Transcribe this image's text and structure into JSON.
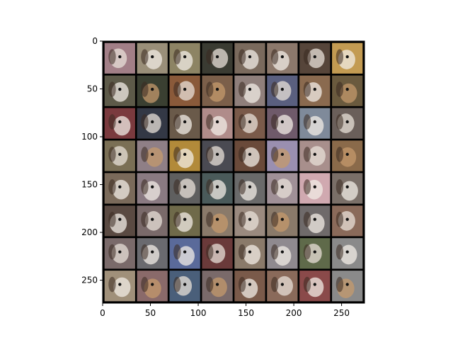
{
  "plot": {
    "x_axis": {
      "range": [
        0,
        274
      ],
      "ticks": [
        0,
        50,
        100,
        150,
        200,
        250
      ]
    },
    "y_axis": {
      "range": [
        0,
        274
      ],
      "ticks": [
        0,
        50,
        100,
        150,
        200,
        250
      ],
      "inverted": true
    }
  },
  "image_grid": {
    "rows": 8,
    "cols": 8,
    "tile_size": 32,
    "padding": 2,
    "pad_value_color": "#000000",
    "subject": "generated dog face samples",
    "tiles": [
      [
        "#a27f87",
        "#9a8f79",
        "#8d8464",
        "#3a3b32",
        "#7a6a5d",
        "#8c786b",
        "#56453a",
        "#c39b52"
      ],
      [
        "#5d5a49",
        "#3a3f31",
        "#8a5a3a",
        "#7b5f4a",
        "#8f7f7b",
        "#5a5f7f",
        "#8a6a4f",
        "#6a5a3e"
      ],
      [
        "#7a3a3e",
        "#333845",
        "#6a5a4a",
        "#b08c8a",
        "#7a5a4a",
        "#6f5a6a",
        "#7f8a9a",
        "#6a5f5a"
      ],
      [
        "#7a6f55",
        "#8f7f86",
        "#b28a3a",
        "#4a4a52",
        "#6a4a3a",
        "#9a8fb0",
        "#a88f8c",
        "#8a6a4a"
      ],
      [
        "#7a6a5a",
        "#8a7a82",
        "#5f5f5f",
        "#4a5a5a",
        "#6a6a6a",
        "#a09097",
        "#d0a9b0",
        "#7a6f68"
      ],
      [
        "#5a4a42",
        "#7a6a6a",
        "#6f6a4a",
        "#8a7a6a",
        "#9a8a7f",
        "#8a7a6a",
        "#6f6a6a",
        "#8a6a5a"
      ],
      [
        "#7a6a6a",
        "#6a6a6f",
        "#5a6a9a",
        "#6a3a3a",
        "#8a7a6a",
        "#8f8a8f",
        "#5f6a4a",
        "#8a8a8a"
      ],
      [
        "#a0907a",
        "#8a6a6a",
        "#4a5f7a",
        "#7a6a6a",
        "#7a5a4a",
        "#8a6a5a",
        "#8a4a4a",
        "#8a8a8a"
      ]
    ]
  }
}
